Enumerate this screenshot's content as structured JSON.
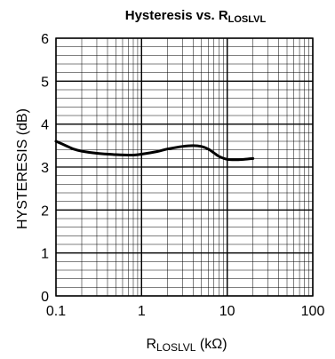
{
  "chart_data": {
    "type": "line",
    "title": {
      "main": "Hysteresis vs. R",
      "sub": "LOSLVL"
    },
    "xlabel": {
      "main": "R",
      "sub": "LOSLVL",
      "unit": " (kΩ)"
    },
    "ylabel": "HYSTERESIS (dB)",
    "x_scale": "log",
    "xlim": [
      0.1,
      100
    ],
    "ylim": [
      0,
      6
    ],
    "x_ticks": [
      "0.1",
      "1",
      "10",
      "100"
    ],
    "y_ticks": [
      "0",
      "1",
      "2",
      "3",
      "4",
      "5",
      "6"
    ],
    "grid": true,
    "series": [
      {
        "x": [
          0.1,
          0.13,
          0.16,
          0.2,
          0.3,
          0.5,
          0.8,
          1.0,
          1.5,
          2.0,
          3.0,
          4.0,
          5.0,
          6.0,
          7.0,
          8.0,
          10.0,
          13.0,
          16.0,
          20.0
        ],
        "y": [
          3.6,
          3.5,
          3.42,
          3.37,
          3.32,
          3.29,
          3.28,
          3.3,
          3.36,
          3.42,
          3.48,
          3.5,
          3.48,
          3.42,
          3.33,
          3.25,
          3.18,
          3.17,
          3.18,
          3.2
        ]
      }
    ]
  }
}
